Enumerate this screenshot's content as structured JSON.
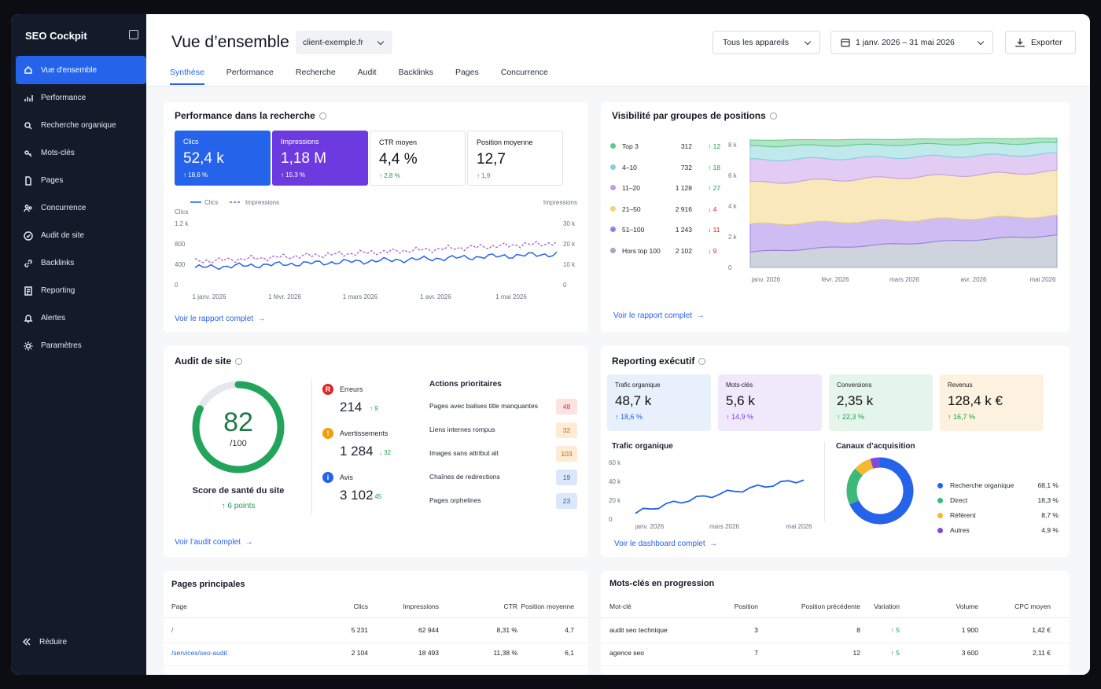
{
  "app": {
    "name": "SEO Cockpit"
  },
  "sidebar": {
    "items": [
      {
        "label": "Vue d'ensemble",
        "icon": "home-icon",
        "active": true
      },
      {
        "label": "Performance",
        "icon": "bar-chart-icon"
      },
      {
        "label": "Recherche organique",
        "icon": "search-icon"
      },
      {
        "label": "Mots-clés",
        "icon": "key-icon"
      },
      {
        "label": "Pages",
        "icon": "file-icon"
      },
      {
        "label": "Concurrence",
        "icon": "users-icon"
      },
      {
        "label": "Audit de site",
        "icon": "audit-icon"
      },
      {
        "label": "Backlinks",
        "icon": "link-icon"
      },
      {
        "label": "Reporting",
        "icon": "report-icon"
      },
      {
        "label": "Alertes",
        "icon": "bell-icon"
      },
      {
        "label": "Paramètres",
        "icon": "gear-icon"
      }
    ],
    "collapse_label": "Réduire"
  },
  "header": {
    "title": "Vue d’ensemble",
    "site": "client-exemple.fr",
    "devices": "Tous les appareils",
    "date_range": "1 janv. 2026 – 31 mai 2026",
    "export": "Exporter"
  },
  "tabs": [
    "Synthèse",
    "Performance",
    "Recherche",
    "Audit",
    "Backlinks",
    "Pages",
    "Concurrence"
  ],
  "perf": {
    "title": "Performance dans la recherche",
    "kpis": [
      {
        "label": "Clics",
        "value": "52,4 k",
        "change": "↑ 18,6 %"
      },
      {
        "label": "Impressions",
        "value": "1,18 M",
        "change": "↑ 15,3 %"
      },
      {
        "label": "CTR moyen",
        "value": "4,4 %",
        "change": "↑ 2,8 %"
      },
      {
        "label": "Position moyenne",
        "value": "12,7",
        "change": "↑ 1,9"
      }
    ],
    "legend_clicks": "Clics",
    "legend_impr": "Impressions",
    "left_axis_title": "Clics",
    "right_axis_title": "Impressions",
    "left_ticks": [
      "1,2 k",
      "800",
      "400",
      "0"
    ],
    "right_ticks": [
      "30 k",
      "20 k",
      "10 k",
      "0"
    ],
    "x_ticks": [
      "1 janv. 2026",
      "1 févr. 2026",
      "1 mars 2026",
      "1 avr. 2026",
      "1 mai 2026"
    ],
    "link": "Voir le rapport complet"
  },
  "visibility": {
    "title": "Visibilité par groupes de positions",
    "groups": [
      {
        "label": "Top 3",
        "count": "312",
        "change": "↑ 12",
        "dir": "up",
        "color": "#5fc98a"
      },
      {
        "label": "4–10",
        "count": "732",
        "change": "↑ 18",
        "dir": "up",
        "color": "#7fd3d8"
      },
      {
        "label": "11–20",
        "count": "1 128",
        "change": "↑ 27",
        "dir": "up",
        "color": "#c59ae8"
      },
      {
        "label": "21–50",
        "count": "2 916",
        "change": "↓ 4",
        "dir": "down",
        "color": "#f4d27a"
      },
      {
        "label": "51–100",
        "count": "1 243",
        "change": "↓ 11",
        "dir": "down",
        "color": "#9b7be6"
      },
      {
        "label": "Hors top 100",
        "count": "2 102",
        "change": "↓ 9",
        "dir": "down",
        "color": "#9ea8bd"
      }
    ],
    "y_ticks": [
      "8 k",
      "6 k",
      "4 k",
      "2 k",
      "0"
    ],
    "x_ticks": [
      "janv. 2026",
      "févr. 2026",
      "mars 2026",
      "avr. 2026",
      "mai 2026"
    ],
    "link": "Voir le rapport complet"
  },
  "audit": {
    "title": "Audit de site",
    "score": "82",
    "score_max": "/100",
    "score_fraction": 0.82,
    "score_label": "Score de santé du site",
    "score_change": "↑ 6 points",
    "issues": [
      {
        "label": "Erreurs",
        "value": "214",
        "change": "↑ 9",
        "color": "#dc2626",
        "icon": "error-icon"
      },
      {
        "label": "Avertissements",
        "value": "1 284",
        "change": "↓ 32",
        "color": "#f59e0b",
        "icon": "warning-icon"
      },
      {
        "label": "Avis",
        "value": "3 102",
        "change": "↑ 45",
        "color": "#2563eb",
        "icon": "info-icon"
      }
    ],
    "actions_title": "Actions prioritaires",
    "actions": [
      {
        "label": "Pages avec balises title manquantes",
        "count": "48",
        "bg": "#fde2e2",
        "fg": "#c24141"
      },
      {
        "label": "Liens internes rompus",
        "count": "32",
        "bg": "#fdebd3",
        "fg": "#b86b10"
      },
      {
        "label": "Images sans attribut alt",
        "count": "103",
        "bg": "#fdebd3",
        "fg": "#b86b10"
      },
      {
        "label": "Chaînes de redirections",
        "count": "19",
        "bg": "#dbe8fb",
        "fg": "#2a5db0"
      },
      {
        "label": "Pages orphelines",
        "count": "23",
        "bg": "#dbe8fb",
        "fg": "#2a5db0"
      }
    ],
    "link": "Voir l’audit complet"
  },
  "reporting": {
    "title": "Reporting exécutif",
    "kpis": [
      {
        "label": "Trafic organique",
        "value": "48,7 k",
        "change": "↑ 18,6 %",
        "bg": "#e8f0fc",
        "fg": "#2563eb"
      },
      {
        "label": "Mots-clés",
        "value": "5,6 k",
        "change": "↑ 14,9 %",
        "bg": "#f0e9fb",
        "fg": "#7c3aed"
      },
      {
        "label": "Conversions",
        "value": "2,35 k",
        "change": "↑ 22,3 %",
        "bg": "#e6f5ec",
        "fg": "#16a34a"
      },
      {
        "label": "Revenus",
        "value": "128,4 k €",
        "change": "↑ 16,7 %",
        "bg": "#fdf1df",
        "fg": "#16a34a"
      }
    ],
    "traffic_title": "Trafic organique",
    "traffic_y": [
      "60 k",
      "40 k",
      "20 k",
      "0"
    ],
    "traffic_x": [
      "janv. 2026",
      "mars 2026",
      "mai 2026"
    ],
    "channels_title": "Canaux d’acquisition",
    "channels": [
      {
        "label": "Recherche organique",
        "value": "68,1 %",
        "pct": 68.1,
        "color": "#2563eb"
      },
      {
        "label": "Direct",
        "value": "18,3 %",
        "pct": 18.3,
        "color": "#3cb878"
      },
      {
        "label": "Référent",
        "value": "8,7 %",
        "pct": 8.7,
        "color": "#f5b82e"
      },
      {
        "label": "Autres",
        "value": "4,9 %",
        "pct": 4.9,
        "color": "#7c4ddb"
      }
    ],
    "link": "Voir le dashboard complet"
  },
  "pages": {
    "title": "Pages principales",
    "headers": [
      "Page",
      "Clics",
      "Impressions",
      "CTR",
      "Position moyenne"
    ],
    "rows": [
      [
        "/",
        "5 231",
        "62 944",
        "8,31 %",
        "4,7"
      ],
      [
        "/services/seo-audit",
        "2 104",
        "18 493",
        "11,38 %",
        "6,1"
      ]
    ]
  },
  "keywords": {
    "title": "Mots-clés en progression",
    "headers": [
      "Mot-clé",
      "Position",
      "Position précédente",
      "Variation",
      "Volume",
      "CPC moyen"
    ],
    "rows": [
      [
        "audit seo technique",
        "3",
        "8",
        "↑ 5",
        "1 900",
        "1,42 €"
      ],
      [
        "agence seo",
        "7",
        "12",
        "↑ 5",
        "3 600",
        "2,11 €"
      ]
    ]
  }
}
